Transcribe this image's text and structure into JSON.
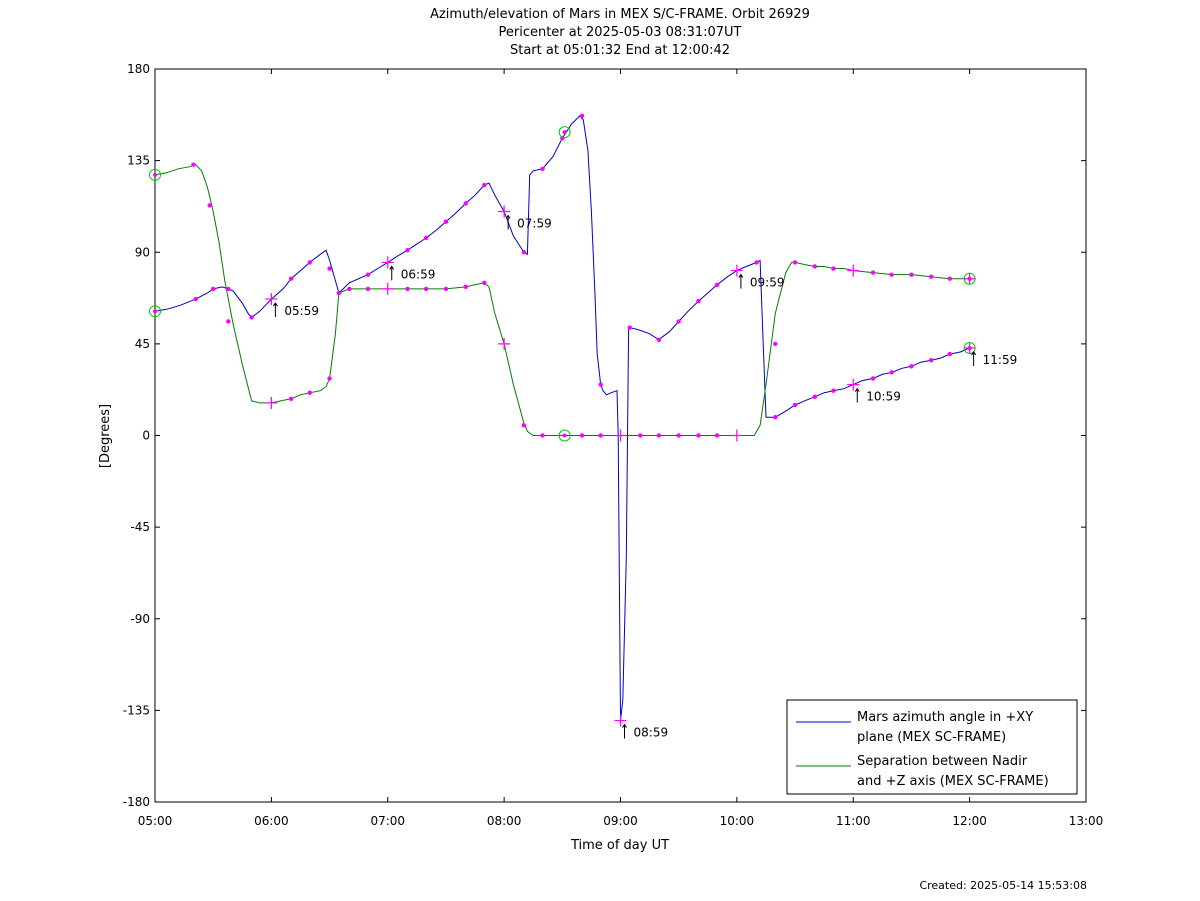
{
  "chart_data": {
    "type": "line",
    "title": [
      "Azimuth/elevation of Mars in MEX S/C-FRAME.  Orbit 26929",
      "Pericenter at 2025-05-03 08:31:07UT",
      "Start at 05:01:32 End at 12:00:42"
    ],
    "xlabel": "Time of day UT",
    "ylabel": "[Degrees]",
    "xlim": [
      5,
      13
    ],
    "ylim": [
      -180,
      180
    ],
    "x_ticks": [
      {
        "value": 5,
        "label": "05:00"
      },
      {
        "value": 6,
        "label": "06:00"
      },
      {
        "value": 7,
        "label": "07:00"
      },
      {
        "value": 8,
        "label": "08:00"
      },
      {
        "value": 9,
        "label": "09:00"
      },
      {
        "value": 10,
        "label": "10:00"
      },
      {
        "value": 11,
        "label": "11:00"
      },
      {
        "value": 12,
        "label": "12:00"
      },
      {
        "value": 13,
        "label": "13:00"
      }
    ],
    "y_ticks": [
      {
        "value": 180,
        "label": "180"
      },
      {
        "value": 135,
        "label": "135"
      },
      {
        "value": 90,
        "label": "90"
      },
      {
        "value": 45,
        "label": "45"
      },
      {
        "value": 0,
        "label": "0"
      },
      {
        "value": -45,
        "label": "-45"
      },
      {
        "value": -90,
        "label": "-90"
      },
      {
        "value": -135,
        "label": "-135"
      },
      {
        "value": -180,
        "label": "-180"
      }
    ],
    "grid": false,
    "legend_position": "bottom-right",
    "marker_color": "#ff00ff",
    "circle_marker_color": "#00cc00",
    "series": [
      {
        "name": "Mars azimuth angle in +XY plane (MEX SC-FRAME)",
        "legend_lines": [
          "Mars azimuth angle in +XY",
          "plane (MEX SC-FRAME)"
        ],
        "color": "#0000cc",
        "x": [
          5.0,
          5.1,
          5.22,
          5.35,
          5.45,
          5.5,
          5.58,
          5.67,
          5.75,
          5.8,
          5.83,
          5.9,
          6.0,
          6.1,
          6.17,
          6.25,
          6.33,
          6.42,
          6.47,
          6.5,
          6.55,
          6.58,
          6.67,
          6.83,
          7.0,
          7.08,
          7.17,
          7.25,
          7.33,
          7.42,
          7.5,
          7.58,
          7.67,
          7.75,
          7.83,
          7.87,
          7.92,
          8.0,
          8.08,
          8.17,
          8.2,
          8.22,
          8.25,
          8.33,
          8.42,
          8.5,
          8.58,
          8.65,
          8.68,
          8.72,
          8.75,
          8.78,
          8.8,
          8.83,
          8.85,
          8.88,
          8.92,
          8.97,
          8.98,
          9.0,
          9.02,
          9.05,
          9.07,
          9.08,
          9.15,
          9.25,
          9.33,
          9.35,
          9.42,
          9.5,
          9.58,
          9.67,
          9.75,
          9.83,
          9.92,
          10.0,
          10.08,
          10.17,
          10.2,
          10.23,
          10.25,
          10.33,
          10.42,
          10.5,
          10.58,
          10.67,
          10.75,
          10.83,
          10.92,
          11.0,
          11.08,
          11.17,
          11.25,
          11.33,
          11.42,
          11.5,
          11.58,
          11.67,
          11.75,
          11.83,
          11.92,
          12.0
        ],
        "y": [
          61,
          62,
          64,
          67,
          70,
          72,
          73,
          71,
          65,
          60,
          58,
          61,
          67,
          72,
          77,
          81,
          85,
          89,
          91,
          86,
          76,
          70,
          75,
          79,
          85,
          88,
          91,
          94,
          97,
          101,
          105,
          109,
          114,
          118,
          123,
          124,
          118,
          110,
          98,
          90,
          89,
          128,
          130,
          131,
          137,
          146,
          153,
          157,
          155,
          140,
          110,
          70,
          40,
          25,
          22,
          20,
          21,
          22,
          0,
          -140,
          -130,
          -60,
          52,
          53,
          52,
          50,
          47,
          48,
          51,
          56,
          61,
          66,
          70,
          74,
          78,
          81,
          83,
          85,
          86,
          40,
          9,
          9,
          12,
          15,
          17,
          19,
          21,
          22,
          23,
          25,
          27,
          28,
          30,
          31,
          33,
          34,
          36,
          37,
          38,
          40,
          41,
          43
        ]
      },
      {
        "name": "Separation between Nadir and +Z axis (MEX SC-FRAME)",
        "legend_lines": [
          "Separation between Nadir",
          "and +Z axis (MEX SC-FRAME)"
        ],
        "color": "#007f00",
        "x": [
          5.0,
          5.1,
          5.2,
          5.3,
          5.35,
          5.4,
          5.45,
          5.5,
          5.55,
          5.6,
          5.67,
          5.75,
          5.83,
          5.9,
          6.0,
          6.08,
          6.17,
          6.25,
          6.33,
          6.42,
          6.47,
          6.5,
          6.55,
          6.58,
          6.67,
          6.75,
          6.83,
          7.0,
          7.17,
          7.33,
          7.5,
          7.67,
          7.75,
          7.83,
          7.87,
          7.92,
          8.0,
          8.08,
          8.17,
          8.2,
          8.25,
          8.33,
          8.42,
          8.5,
          8.58,
          8.67,
          8.75,
          8.83,
          8.92,
          9.0,
          9.17,
          9.33,
          9.5,
          9.67,
          9.83,
          10.0,
          10.15,
          10.2,
          10.25,
          10.33,
          10.42,
          10.47,
          10.5,
          10.58,
          10.67,
          10.75,
          10.83,
          10.92,
          11.0,
          11.17,
          11.33,
          11.5,
          11.67,
          11.83,
          12.0
        ],
        "y": [
          128,
          129,
          131,
          132,
          133,
          130,
          122,
          110,
          95,
          76,
          55,
          35,
          17,
          16,
          16,
          17,
          18,
          20,
          21,
          22,
          24,
          28,
          50,
          70,
          72,
          72,
          72,
          72,
          72,
          72,
          72,
          73,
          74,
          75,
          73,
          60,
          45,
          25,
          6,
          2,
          0,
          0,
          0,
          0,
          0,
          0,
          0,
          0,
          0,
          0,
          0,
          0,
          0,
          0,
          0,
          0,
          0,
          5,
          25,
          60,
          80,
          85,
          85,
          84,
          83,
          83,
          82,
          82,
          81,
          80,
          79,
          79,
          78,
          77,
          77
        ]
      }
    ],
    "markers": {
      "dots": [
        {
          "x": 5.35,
          "y": 67
        },
        {
          "x": 5.5,
          "y": 72
        },
        {
          "x": 5.63,
          "y": 72
        },
        {
          "x": 5.83,
          "y": 58
        },
        {
          "x": 6.17,
          "y": 77
        },
        {
          "x": 6.33,
          "y": 85
        },
        {
          "x": 6.58,
          "y": 70
        },
        {
          "x": 6.83,
          "y": 79
        },
        {
          "x": 7.17,
          "y": 91
        },
        {
          "x": 7.33,
          "y": 97
        },
        {
          "x": 7.5,
          "y": 105
        },
        {
          "x": 7.67,
          "y": 114
        },
        {
          "x": 7.83,
          "y": 123
        },
        {
          "x": 8.17,
          "y": 90
        },
        {
          "x": 8.33,
          "y": 131
        },
        {
          "x": 8.5,
          "y": 146
        },
        {
          "x": 8.67,
          "y": 157
        },
        {
          "x": 8.83,
          "y": 25
        },
        {
          "x": 9.08,
          "y": 53
        },
        {
          "x": 9.33,
          "y": 47
        },
        {
          "x": 9.5,
          "y": 56
        },
        {
          "x": 9.67,
          "y": 66
        },
        {
          "x": 9.83,
          "y": 74
        },
        {
          "x": 10.17,
          "y": 85
        },
        {
          "x": 10.33,
          "y": 9
        },
        {
          "x": 10.5,
          "y": 15
        },
        {
          "x": 10.67,
          "y": 19
        },
        {
          "x": 10.83,
          "y": 22
        },
        {
          "x": 11.17,
          "y": 28
        },
        {
          "x": 11.33,
          "y": 31
        },
        {
          "x": 11.5,
          "y": 34
        },
        {
          "x": 11.67,
          "y": 37
        },
        {
          "x": 11.83,
          "y": 40
        },
        {
          "x": 5.33,
          "y": 133
        },
        {
          "x": 5.47,
          "y": 113
        },
        {
          "x": 5.63,
          "y": 56
        },
        {
          "x": 6.17,
          "y": 18
        },
        {
          "x": 6.33,
          "y": 21
        },
        {
          "x": 6.5,
          "y": 28
        },
        {
          "x": 6.5,
          "y": 82
        },
        {
          "x": 6.67,
          "y": 72
        },
        {
          "x": 6.83,
          "y": 72
        },
        {
          "x": 7.17,
          "y": 72
        },
        {
          "x": 7.33,
          "y": 72
        },
        {
          "x": 7.5,
          "y": 72
        },
        {
          "x": 7.67,
          "y": 73
        },
        {
          "x": 7.83,
          "y": 75
        },
        {
          "x": 8.17,
          "y": 5
        },
        {
          "x": 8.33,
          "y": 0
        },
        {
          "x": 8.67,
          "y": 0
        },
        {
          "x": 8.83,
          "y": 0
        },
        {
          "x": 9.17,
          "y": 0
        },
        {
          "x": 9.33,
          "y": 0
        },
        {
          "x": 9.5,
          "y": 0
        },
        {
          "x": 9.67,
          "y": 0
        },
        {
          "x": 9.83,
          "y": 0
        },
        {
          "x": 10.33,
          "y": 45
        },
        {
          "x": 10.5,
          "y": 85
        },
        {
          "x": 10.67,
          "y": 83
        },
        {
          "x": 10.83,
          "y": 82
        },
        {
          "x": 11.17,
          "y": 80
        },
        {
          "x": 11.33,
          "y": 79
        },
        {
          "x": 11.5,
          "y": 79
        },
        {
          "x": 11.67,
          "y": 78
        },
        {
          "x": 11.83,
          "y": 77
        }
      ],
      "crosses": [
        {
          "x": 6.0,
          "y": 67
        },
        {
          "x": 7.0,
          "y": 85
        },
        {
          "x": 8.0,
          "y": 110
        },
        {
          "x": 9.0,
          "y": -140
        },
        {
          "x": 10.0,
          "y": 81
        },
        {
          "x": 11.0,
          "y": 25
        },
        {
          "x": 12.0,
          "y": 43
        },
        {
          "x": 6.0,
          "y": 16
        },
        {
          "x": 7.0,
          "y": 72
        },
        {
          "x": 8.0,
          "y": 45
        },
        {
          "x": 9.0,
          "y": 0
        },
        {
          "x": 10.0,
          "y": 0
        },
        {
          "x": 11.0,
          "y": 81
        },
        {
          "x": 12.0,
          "y": 77
        }
      ],
      "circles": [
        {
          "x": 5.0,
          "y": 61
        },
        {
          "x": 5.0,
          "y": 128
        },
        {
          "x": 8.52,
          "y": 149
        },
        {
          "x": 8.52,
          "y": 0
        },
        {
          "x": 12.0,
          "y": 43
        },
        {
          "x": 12.0,
          "y": 77
        }
      ]
    },
    "annotations": [
      {
        "x": 6.0,
        "y": 67,
        "label": "05:59"
      },
      {
        "x": 7.0,
        "y": 85,
        "label": "06:59"
      },
      {
        "x": 8.0,
        "y": 110,
        "label": "07:59"
      },
      {
        "x": 9.0,
        "y": -140,
        "label": "08:59"
      },
      {
        "x": 10.0,
        "y": 81,
        "label": "09:59"
      },
      {
        "x": 11.0,
        "y": 25,
        "label": "10:59"
      },
      {
        "x": 12.0,
        "y": 43,
        "label": "11:59"
      }
    ],
    "footer": "Created: 2025-05-14 15:53:08"
  }
}
